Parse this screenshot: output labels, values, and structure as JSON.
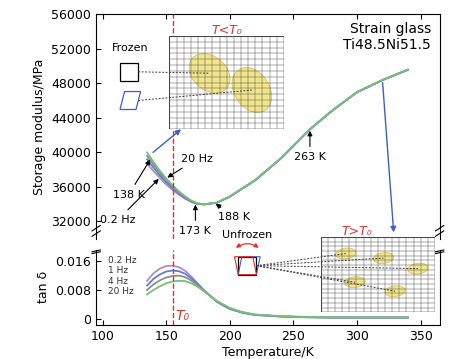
{
  "chart_data": [
    {
      "type": "line",
      "ylabel": "Storage modulus/MPa",
      "xlim": [
        95,
        365
      ],
      "xticks": [
        100,
        150,
        200,
        250,
        300,
        350
      ],
      "ylim": [
        30000,
        56000
      ],
      "yticks": [
        32000,
        36000,
        40000,
        44000,
        48000,
        52000,
        56000
      ],
      "tick_labels": "y",
      "x": [
        135,
        140,
        145,
        150,
        155,
        160,
        165,
        170,
        175,
        180,
        190,
        200,
        220,
        240,
        263,
        280,
        300,
        320,
        340
      ],
      "series": [
        {
          "name": "0.2 Hz",
          "color": "#b48ac8",
          "values": [
            38700,
            37850,
            37050,
            36300,
            35650,
            35100,
            34620,
            34230,
            34010,
            33970,
            34170,
            34870,
            36770,
            39270,
            42670,
            44770,
            46970,
            48370,
            49570
          ]
        },
        {
          "name": "1 Hz",
          "color": "#5a7fd6",
          "values": [
            39200,
            38250,
            37350,
            36550,
            35850,
            35250,
            34720,
            34290,
            34040,
            33980,
            34180,
            34880,
            36780,
            39280,
            42680,
            44780,
            46980,
            48380,
            49580
          ]
        },
        {
          "name": "4 Hz",
          "color": "#8c8c8c",
          "values": [
            39600,
            38600,
            37650,
            36800,
            36050,
            35400,
            34820,
            34350,
            34070,
            33990,
            34190,
            34890,
            36790,
            39290,
            42690,
            44790,
            46990,
            48390,
            49590
          ]
        },
        {
          "name": "20 Hz",
          "color": "#76c17a",
          "values": [
            40000,
            38900,
            37900,
            37000,
            36200,
            35500,
            34900,
            34400,
            34100,
            34000,
            34200,
            34900,
            36800,
            39300,
            42700,
            44800,
            47000,
            48400,
            49600
          ]
        }
      ],
      "annotations": [
        {
          "label": "138 K",
          "x": 138,
          "y": 39300
        },
        {
          "label": "173 K",
          "x": 173,
          "y": 34120
        },
        {
          "label": "188 K",
          "x": 188,
          "y": 34150
        },
        {
          "label": "263 K",
          "x": 263,
          "y": 42680
        },
        {
          "label": "20 Hz",
          "x": 150,
          "y": 37000
        },
        {
          "label": "0.2 Hz",
          "x": 145,
          "y": 37050
        }
      ],
      "texts": [
        "Strain glass",
        "Ti48.5Ni51.5"
      ]
    },
    {
      "type": "line",
      "ylabel": "tan δ",
      "xlabel": "Temperature/K",
      "xlim": [
        95,
        365
      ],
      "xticks": [
        100,
        150,
        200,
        250,
        300,
        350
      ],
      "ylim": [
        -0.0015,
        0.019
      ],
      "yticks": [
        0,
        0.008,
        0.016
      ],
      "x": [
        135,
        140,
        145,
        150,
        155,
        160,
        165,
        170,
        175,
        180,
        190,
        200,
        210,
        220,
        240,
        260,
        280,
        300,
        320,
        340
      ],
      "series": [
        {
          "name": "0.2 Hz",
          "color": "#b48ac8",
          "values": [
            0.0105,
            0.0125,
            0.0138,
            0.0145,
            0.0146,
            0.0142,
            0.0132,
            0.0116,
            0.0097,
            0.0078,
            0.0047,
            0.0028,
            0.0018,
            0.0012,
            0.0008,
            0.0006,
            0.0005,
            0.0005,
            0.0005,
            0.0005
          ]
        },
        {
          "name": "1 Hz",
          "color": "#5a7fd6",
          "values": [
            0.0092,
            0.011,
            0.0122,
            0.013,
            0.0133,
            0.0131,
            0.0124,
            0.0111,
            0.0095,
            0.0078,
            0.0048,
            0.0029,
            0.0018,
            0.0012,
            0.0008,
            0.0006,
            0.0005,
            0.0005,
            0.0005,
            0.0005
          ]
        },
        {
          "name": "4 Hz",
          "color": "#8c8c8c",
          "values": [
            0.008,
            0.0095,
            0.0106,
            0.0114,
            0.0118,
            0.0119,
            0.0115,
            0.0105,
            0.0092,
            0.0077,
            0.0049,
            0.003,
            0.0019,
            0.0013,
            0.0008,
            0.0006,
            0.0005,
            0.0005,
            0.0005,
            0.0005
          ]
        },
        {
          "name": "20 Hz",
          "color": "#76c17a",
          "values": [
            0.0068,
            0.008,
            0.009,
            0.0098,
            0.0103,
            0.0105,
            0.0104,
            0.0098,
            0.0088,
            0.0076,
            0.005,
            0.0031,
            0.002,
            0.0013,
            0.0009,
            0.0007,
            0.0006,
            0.0005,
            0.0005,
            0.0005
          ]
        }
      ]
    }
  ],
  "t0": {
    "x": 155,
    "label": "T₀"
  },
  "insets": {
    "frozen": {
      "title": "T<T₀",
      "label": "Frozen"
    },
    "unfrozen": {
      "title": "T>T₀",
      "label": "Unfrozen"
    }
  }
}
